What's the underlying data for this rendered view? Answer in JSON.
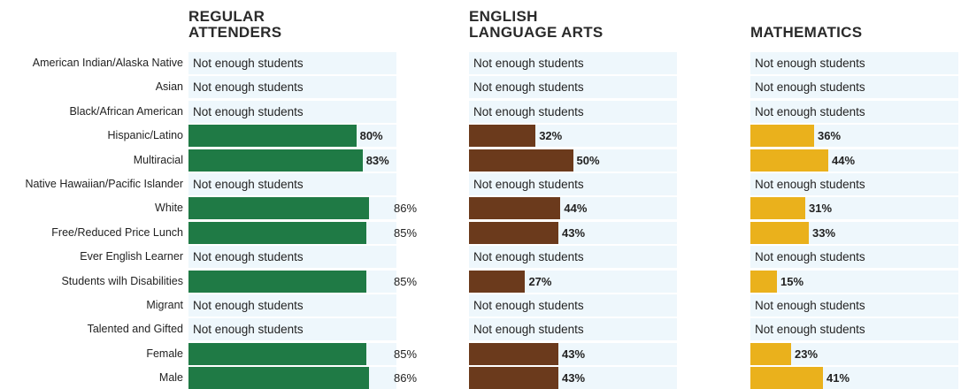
{
  "headers": {
    "regular_line1": "REGULAR",
    "regular_line2": "ATTENDERS",
    "ela_line1": "ENGLISH",
    "ela_line2": "LANGUAGE ARTS",
    "math": "MATHEMATICS"
  },
  "not_enough_text": "Not enough students",
  "colors": {
    "regular": "#1f7a45",
    "ela": "#6b3a1c",
    "math": "#eab11c",
    "track": "#eef7fc"
  },
  "chart_data": {
    "type": "bar",
    "orientation": "horizontal",
    "unit": "%",
    "categories": [
      "American Indian/Alaska Native",
      "Asian",
      "Black/African American",
      "Hispanic/Latino",
      "Multiracial",
      "Native Hawaiian/Pacific Islander",
      "White",
      "Free/Reduced Price Lunch",
      "Ever English Learner",
      "Students with Disabilities",
      "Migrant",
      "Talented and Gifted",
      "Female",
      "Male"
    ],
    "category_labels": [
      "American Indian/Alaska Native",
      "Asian",
      "Black/African American",
      "Hispanic/Latino",
      "Multiracial",
      "Native Hawaiian/Pacific Islander",
      "White",
      "Free/Reduced Price Lunch",
      "Ever English Learner",
      "Students wilh Disabilities",
      "Migrant",
      "Talented and Gifted",
      "Female",
      "Male"
    ],
    "series": [
      {
        "values": [
          null,
          null,
          null,
          80,
          83,
          null,
          86,
          85,
          null,
          85,
          null,
          null,
          85,
          86
        ],
        "labels": [
          "",
          "",
          "",
          "80%",
          "83%",
          "",
          "86%",
          "85%",
          "",
          "85%",
          "",
          "",
          "85%",
          "86%"
        ]
      },
      {
        "values": [
          null,
          null,
          null,
          32,
          50,
          null,
          44,
          43,
          null,
          27,
          null,
          null,
          43,
          43
        ],
        "labels": [
          "",
          "",
          "",
          "32%",
          "50%",
          "",
          "44%",
          "43%",
          "",
          "27%",
          "",
          "",
          "43%",
          "43%"
        ]
      },
      {
        "values": [
          null,
          null,
          null,
          36,
          44,
          null,
          31,
          33,
          null,
          15,
          null,
          null,
          23,
          41
        ],
        "labels": [
          "",
          "",
          "",
          "36%",
          "44%",
          "",
          "31%",
          "33%",
          "",
          "15%",
          "",
          "",
          "23%",
          "41%"
        ]
      }
    ]
  }
}
